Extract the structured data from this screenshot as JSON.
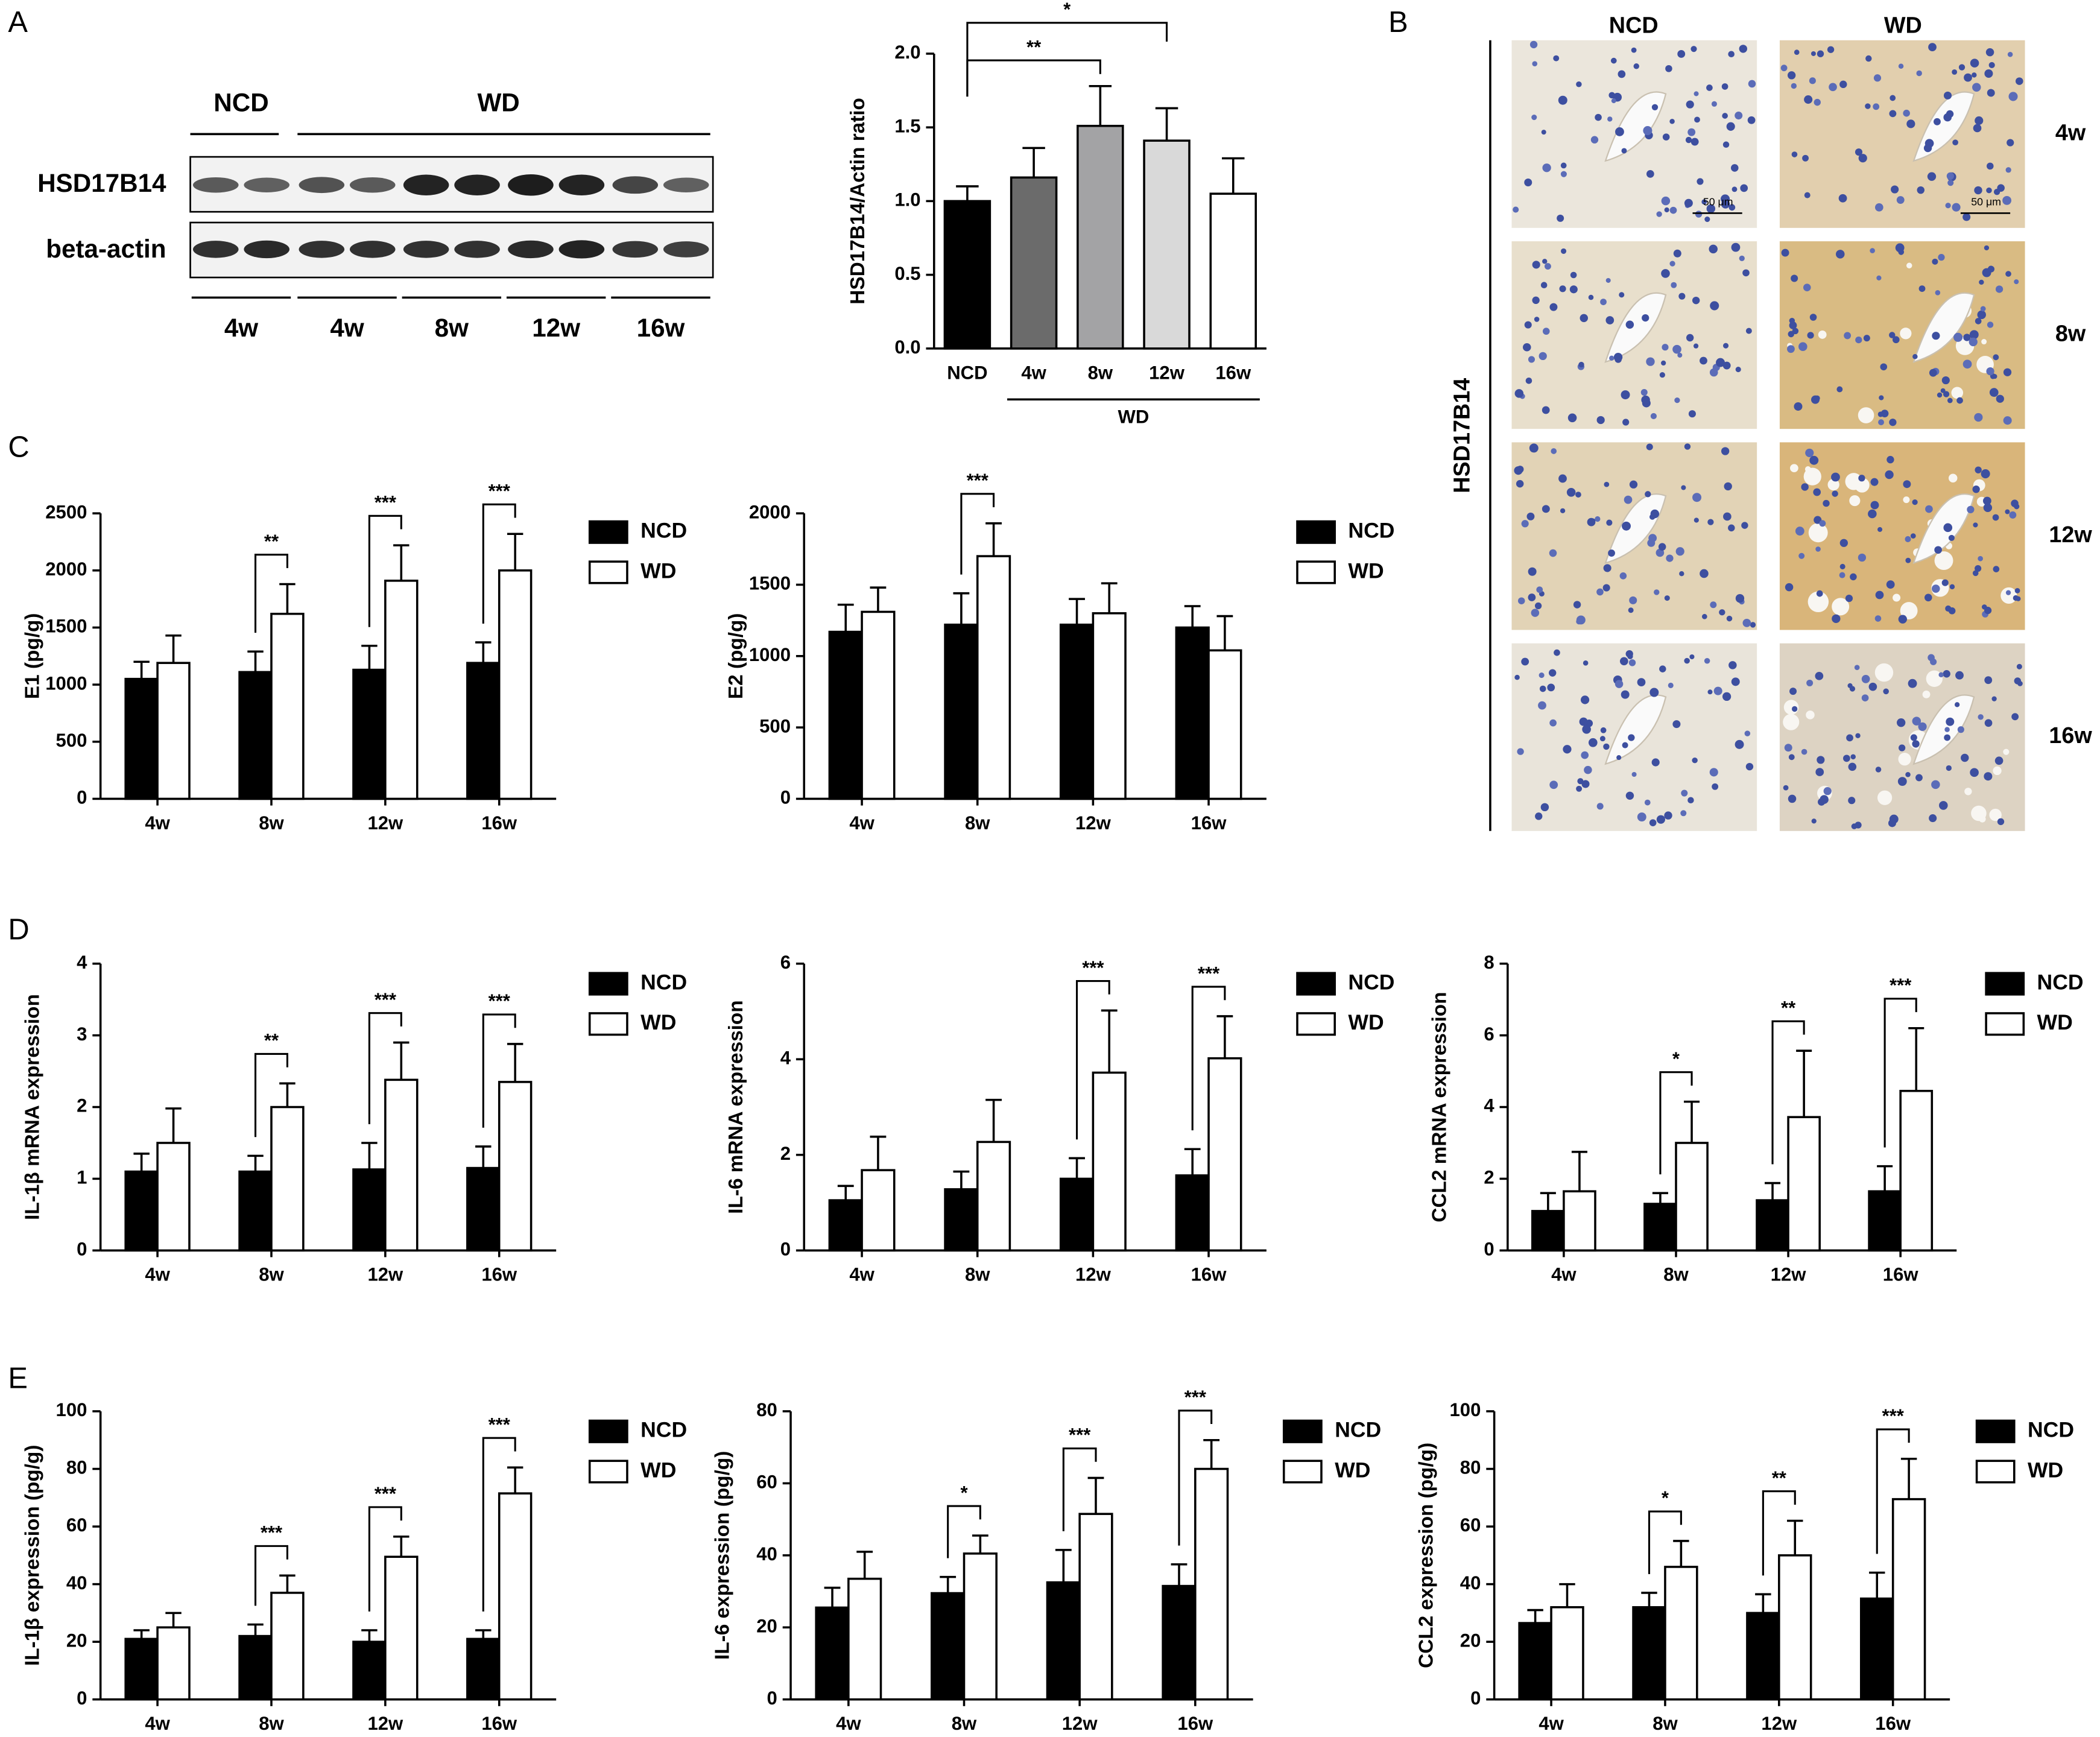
{
  "panels": [
    "A",
    "B",
    "C",
    "D",
    "E"
  ],
  "blot": {
    "groups": [
      "NCD",
      "WD"
    ],
    "rows": [
      "HSD17B14",
      "beta-actin"
    ],
    "lanes": [
      "4w",
      "4w",
      "8w",
      "12w",
      "16w"
    ]
  },
  "ihc": {
    "stain": "HSD17B14",
    "columns": [
      "NCD",
      "WD"
    ],
    "rows": [
      "4w",
      "8w",
      "12w",
      "16w"
    ],
    "scale_bar": "50 μm"
  },
  "chart_data": [
    {
      "type": "bar",
      "ylabel": "HSD17B14/Actin ratio",
      "categories": [
        "NCD",
        "4w",
        "8w",
        "12w",
        "16w"
      ],
      "values": [
        1.0,
        1.16,
        1.51,
        1.41,
        1.05
      ],
      "errors": [
        0.1,
        0.2,
        0.27,
        0.22,
        0.24
      ],
      "colors": [
        "#000000",
        "#6b6b6b",
        "#a3a3a5",
        "#d9d9d9",
        "#ffffff"
      ],
      "significance": [
        null,
        null,
        "**",
        "*",
        null
      ],
      "group_label": "WD",
      "ylim": [
        0,
        2
      ],
      "yticks": [
        {
          "value": 0,
          "label": "0.0"
        },
        {
          "value": 0.5,
          "label": "0.5"
        },
        {
          "value": 1,
          "label": "1.0"
        },
        {
          "value": 1.5,
          "label": "1.5"
        },
        {
          "value": 2,
          "label": "2.0"
        }
      ]
    },
    {
      "type": "bar",
      "ylabel": "E1 (pg/g)",
      "categories": [
        "4w",
        "8w",
        "12w",
        "16w"
      ],
      "series": [
        {
          "name": "NCD",
          "color": "#000000",
          "values": [
            1050,
            1110,
            1130,
            1190
          ],
          "errors": [
            150,
            180,
            210,
            180
          ]
        },
        {
          "name": "WD",
          "color": "#ffffff",
          "values": [
            1190,
            1620,
            1910,
            2000
          ],
          "errors": [
            240,
            260,
            310,
            320
          ]
        }
      ],
      "significance": [
        null,
        "**",
        "***",
        "***"
      ],
      "ylim": [
        0,
        2500
      ],
      "yticks": [
        0,
        500,
        1000,
        1500,
        2000,
        2500
      ]
    },
    {
      "type": "bar",
      "ylabel": "E2 (pg/g)",
      "categories": [
        "4w",
        "8w",
        "12w",
        "16w"
      ],
      "series": [
        {
          "name": "NCD",
          "color": "#000000",
          "values": [
            1170,
            1220,
            1220,
            1200
          ],
          "errors": [
            190,
            220,
            180,
            150
          ]
        },
        {
          "name": "WD",
          "color": "#ffffff",
          "values": [
            1310,
            1700,
            1300,
            1040
          ],
          "errors": [
            170,
            230,
            210,
            240
          ]
        }
      ],
      "significance": [
        null,
        "***",
        null,
        null
      ],
      "ylim": [
        0,
        2000
      ],
      "yticks": [
        0,
        500,
        1000,
        1500,
        2000
      ]
    },
    {
      "type": "bar",
      "ylabel": "IL-1β mRNA expression",
      "categories": [
        "4w",
        "8w",
        "12w",
        "16w"
      ],
      "series": [
        {
          "name": "NCD",
          "color": "#000000",
          "values": [
            1.1,
            1.1,
            1.13,
            1.15
          ],
          "errors": [
            0.25,
            0.22,
            0.37,
            0.3
          ]
        },
        {
          "name": "WD",
          "color": "#ffffff",
          "values": [
            1.5,
            2.0,
            2.38,
            2.35
          ],
          "errors": [
            0.48,
            0.33,
            0.52,
            0.53
          ]
        }
      ],
      "significance": [
        null,
        "**",
        "***",
        "***"
      ],
      "ylim": [
        0,
        4
      ],
      "yticks": [
        0,
        1,
        2,
        3,
        4
      ]
    },
    {
      "type": "bar",
      "ylabel": "IL-6 mRNA expression",
      "categories": [
        "4w",
        "8w",
        "12w",
        "16w"
      ],
      "series": [
        {
          "name": "NCD",
          "color": "#000000",
          "values": [
            1.05,
            1.28,
            1.5,
            1.57
          ],
          "errors": [
            0.3,
            0.37,
            0.43,
            0.55
          ]
        },
        {
          "name": "WD",
          "color": "#ffffff",
          "values": [
            1.68,
            2.27,
            3.72,
            4.02
          ],
          "errors": [
            0.7,
            0.88,
            1.3,
            0.88
          ]
        }
      ],
      "significance": [
        null,
        null,
        "***",
        "***"
      ],
      "ylim": [
        0,
        6
      ],
      "yticks": [
        0,
        2,
        4,
        6
      ]
    },
    {
      "type": "bar",
      "ylabel": "CCL2 mRNA expression",
      "categories": [
        "4w",
        "8w",
        "12w",
        "16w"
      ],
      "series": [
        {
          "name": "NCD",
          "color": "#000000",
          "values": [
            1.1,
            1.3,
            1.4,
            1.65
          ],
          "errors": [
            0.5,
            0.3,
            0.48,
            0.7
          ]
        },
        {
          "name": "WD",
          "color": "#ffffff",
          "values": [
            1.65,
            3.0,
            3.72,
            4.45
          ],
          "errors": [
            1.1,
            1.15,
            1.85,
            1.75
          ]
        }
      ],
      "significance": [
        null,
        "*",
        "**",
        "***"
      ],
      "ylim": [
        0,
        8
      ],
      "yticks": [
        0,
        2,
        4,
        6,
        8
      ]
    },
    {
      "type": "bar",
      "ylabel": "IL-1β expression (pg/g)",
      "categories": [
        "4w",
        "8w",
        "12w",
        "16w"
      ],
      "series": [
        {
          "name": "NCD",
          "color": "#000000",
          "values": [
            21,
            22,
            20,
            21
          ],
          "errors": [
            3,
            4,
            4,
            3
          ]
        },
        {
          "name": "WD",
          "color": "#ffffff",
          "values": [
            25,
            37,
            49.5,
            71.5
          ],
          "errors": [
            5,
            6,
            7,
            9
          ]
        }
      ],
      "significance": [
        null,
        "***",
        "***",
        "***"
      ],
      "ylim": [
        0,
        100
      ],
      "yticks": [
        0,
        20,
        40,
        60,
        80,
        100
      ]
    },
    {
      "type": "bar",
      "ylabel": "IL-6 expression (pg/g)",
      "categories": [
        "4w",
        "8w",
        "12w",
        "16w"
      ],
      "series": [
        {
          "name": "NCD",
          "color": "#000000",
          "values": [
            25.5,
            29.5,
            32.5,
            31.5
          ],
          "errors": [
            5.5,
            4.5,
            9,
            6
          ]
        },
        {
          "name": "WD",
          "color": "#ffffff",
          "values": [
            33.5,
            40.5,
            51.5,
            64
          ],
          "errors": [
            7.5,
            5,
            10,
            8
          ]
        }
      ],
      "significance": [
        null,
        "*",
        "***",
        "***"
      ],
      "ylim": [
        0,
        80
      ],
      "yticks": [
        0,
        20,
        40,
        60,
        80
      ]
    },
    {
      "type": "bar",
      "ylabel": "CCL2 expression (pg/g)",
      "categories": [
        "4w",
        "8w",
        "12w",
        "16w"
      ],
      "series": [
        {
          "name": "NCD",
          "color": "#000000",
          "values": [
            26.5,
            32,
            30,
            35
          ],
          "errors": [
            4.5,
            5,
            6.5,
            9
          ]
        },
        {
          "name": "WD",
          "color": "#ffffff",
          "values": [
            32,
            46,
            50,
            69.5
          ],
          "errors": [
            8,
            9,
            12,
            14
          ]
        }
      ],
      "significance": [
        null,
        "*",
        "**",
        "***"
      ],
      "ylim": [
        0,
        100
      ],
      "yticks": [
        0,
        20,
        40,
        60,
        80,
        100
      ]
    }
  ]
}
